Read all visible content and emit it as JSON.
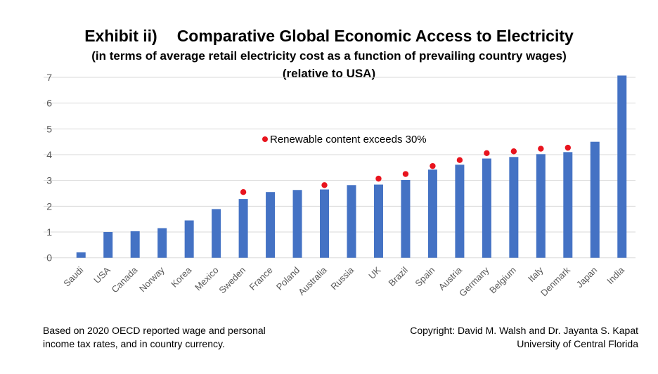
{
  "title": {
    "prefix": "Exhibit ii)",
    "main": "Comparative Global Economic Access to Electricity"
  },
  "subtitle": "(in terms of average retail electricity cost as a function of prevailing country wages)",
  "subtitle2": "(relative to USA)",
  "footer": {
    "left": [
      "Based on 2020 OECD reported wage and personal",
      "income tax rates, and in country currency."
    ],
    "right": [
      "Copyright: David M. Walsh and Dr. Jayanta S. Kapat",
      "University of Central Florida"
    ]
  },
  "colors": {
    "bar": "#4472c4",
    "dot": "#e8141e",
    "grid": "#d9d9d9",
    "tick": "#595959"
  },
  "chart_data": {
    "type": "bar",
    "title": "Comparative Global Economic Access to Electricity",
    "xlabel": "",
    "ylabel": "",
    "ylim": [
      0,
      7
    ],
    "yticks": [
      0,
      1,
      2,
      3,
      4,
      5,
      6,
      7
    ],
    "grid": true,
    "categories": [
      "Saudi",
      "USA",
      "Canada",
      "Norway",
      "Korea",
      "Mexico",
      "Sweden",
      "France",
      "Poland",
      "Australia",
      "Russia",
      "UK",
      "Brazil",
      "Spain",
      "Austria",
      "Germany",
      "Belgium",
      "Italy",
      "Denmark",
      "Japan",
      "India"
    ],
    "values": [
      0.21,
      1.0,
      1.03,
      1.15,
      1.45,
      1.89,
      2.28,
      2.55,
      2.63,
      2.65,
      2.82,
      2.84,
      3.02,
      3.42,
      3.61,
      3.85,
      3.91,
      4.02,
      4.1,
      4.5,
      7.07
    ],
    "markers": {
      "label": "Renewable content exceeds 30%",
      "points": [
        {
          "category": "Sweden",
          "y": 2.55
        },
        {
          "category": "Australia",
          "y": 2.82
        },
        {
          "category": "UK",
          "y": 3.07
        },
        {
          "category": "Brazil",
          "y": 3.25
        },
        {
          "category": "Spain",
          "y": 3.56
        },
        {
          "category": "Austria",
          "y": 3.79
        },
        {
          "category": "Germany",
          "y": 4.06
        },
        {
          "category": "Belgium",
          "y": 4.13
        },
        {
          "category": "Italy",
          "y": 4.23
        },
        {
          "category": "Denmark",
          "y": 4.27
        }
      ]
    },
    "legend_position": "center"
  }
}
